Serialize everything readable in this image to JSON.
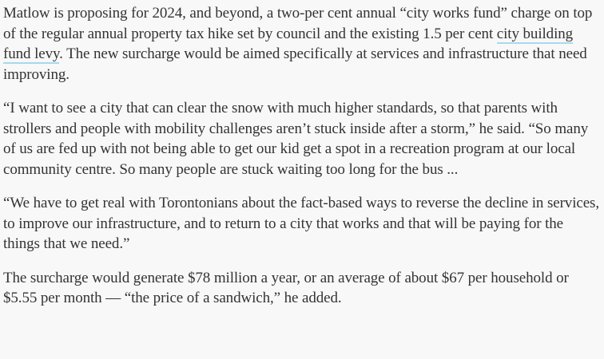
{
  "article": {
    "p1_before": "Matlow is proposing for 2024, and beyond, a two-per cent annual “city works fund” charge on top of the regular annual property tax hike set by council and the existing 1.5 per cent ",
    "p1_link": "city building fund levy",
    "p1_after": ". The new surcharge would be aimed specifically at services and infrastructure that need improving.",
    "p2": "“I want to see a city that can clear the snow with much higher standards, so that parents with strollers and people with mobility challenges aren’t stuck inside after a storm,” he said. “So many of us are fed up with not being able to get our kid get a spot in a recreation program at our local community centre. So many people are stuck waiting too long for the bus ...",
    "p3": "“We have to get real with Torontonians about the fact-based ways to reverse the decline in services, to improve our infrastructure, and to return to a city that works and that will be paying for the things that we need.”",
    "p4": "The surcharge would generate $78 million a year, or an average of about $67 per household or $5.55 per month — “the price of a sandwich,” he added."
  },
  "colors": {
    "background": "#f8f8f8",
    "text": "#333333",
    "link_underline": "#a8d8ec"
  }
}
